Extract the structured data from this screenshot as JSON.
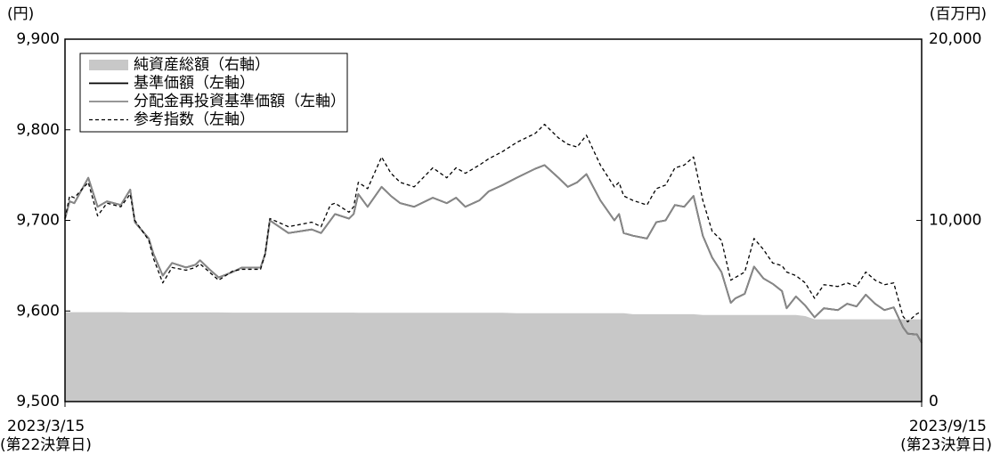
{
  "chart_data": {
    "type": "line",
    "y_unit": "(円)",
    "y2_unit": "(百万円)",
    "xlim": [
      0,
      184
    ],
    "xticks": [
      {
        "value": 0,
        "label": "2023/3/15"
      },
      {
        "value": 184,
        "label": "2023/9/15"
      }
    ],
    "xtick_sublabels": [
      "(第22決算日)",
      "(第23決算日)"
    ],
    "ylim": [
      9500,
      9900
    ],
    "yticks": [
      {
        "value": 9500,
        "label": "9,500"
      },
      {
        "value": 9600,
        "label": "9,600"
      },
      {
        "value": 9700,
        "label": "9,700"
      },
      {
        "value": 9800,
        "label": "9,800"
      },
      {
        "value": 9900,
        "label": "9,900"
      }
    ],
    "y2lim": [
      0,
      20000
    ],
    "y2ticks": [
      0,
      {
        "value": 10000,
        "label": "10,000"
      },
      {
        "value": 20000,
        "label": "20,000"
      }
    ],
    "grid": false,
    "legend": "upper left",
    "x": [
      0,
      1,
      2,
      5,
      7,
      9,
      12,
      14,
      15,
      18,
      19,
      21,
      23,
      26,
      28,
      29,
      31,
      33,
      36,
      38,
      42,
      43,
      44,
      48,
      53,
      55,
      57,
      58,
      61,
      62,
      63,
      65,
      68,
      70,
      72,
      75,
      79,
      82,
      84,
      86,
      89,
      91,
      94,
      97,
      101,
      103,
      106,
      108,
      110,
      112,
      115,
      118,
      119,
      120,
      122,
      125,
      127,
      129,
      131,
      133,
      135,
      137,
      139,
      141,
      143,
      144,
      146,
      148,
      150,
      152,
      154,
      155,
      157,
      159,
      161,
      163,
      166,
      168,
      170,
      172,
      174,
      176,
      178,
      180,
      181,
      183,
      184
    ],
    "series": [
      {
        "name": "純資産総額（右軸）",
        "color": "#c8c8c8",
        "axis": "y2",
        "style": "area",
        "values": [
          4930,
          4930,
          4930,
          4930,
          4930,
          4930,
          4930,
          4920,
          4920,
          4920,
          4920,
          4920,
          4920,
          4920,
          4920,
          4920,
          4920,
          4920,
          4910,
          4910,
          4910,
          4910,
          4910,
          4910,
          4910,
          4910,
          4910,
          4910,
          4910,
          4910,
          4900,
          4900,
          4900,
          4900,
          4900,
          4900,
          4900,
          4900,
          4900,
          4900,
          4900,
          4900,
          4900,
          4880,
          4880,
          4880,
          4880,
          4880,
          4880,
          4880,
          4880,
          4880,
          4880,
          4880,
          4820,
          4820,
          4820,
          4820,
          4820,
          4820,
          4820,
          4780,
          4780,
          4780,
          4780,
          4780,
          4780,
          4780,
          4780,
          4780,
          4780,
          4780,
          4780,
          4720,
          4540,
          4540,
          4540,
          4540,
          4540,
          4540,
          4540,
          4540,
          4540,
          4540,
          4540,
          4540,
          4540
        ]
      },
      {
        "name": "基準価額（左軸）",
        "color": "#000000",
        "style": "solid",
        "values": [
          9702,
          9721,
          9719,
          9747,
          9715,
          9721,
          9717,
          9734,
          9698,
          9680,
          9663,
          9639,
          9653,
          9648,
          9651,
          9656,
          9646,
          9637,
          9643,
          9648,
          9648,
          9663,
          9700,
          9686,
          9690,
          9686,
          9700,
          9707,
          9702,
          9707,
          9729,
          9715,
          9737,
          9727,
          9719,
          9715,
          9725,
          9719,
          9725,
          9715,
          9722,
          9732,
          9739,
          9747,
          9757,
          9761,
          9747,
          9737,
          9742,
          9751,
          9722,
          9700,
          9707,
          9686,
          9683,
          9680,
          9698,
          9700,
          9717,
          9715,
          9727,
          9683,
          9659,
          9643,
          9609,
          9614,
          9619,
          9649,
          9636,
          9630,
          9622,
          9603,
          9616,
          9606,
          9593,
          9603,
          9601,
          9608,
          9605,
          9618,
          9608,
          9601,
          9604,
          9582,
          9575,
          9574,
          9565
        ]
      },
      {
        "name": "分配金再投資基準価額（左軸）",
        "color": "#888888",
        "style": "solid",
        "values": [
          9702,
          9721,
          9719,
          9747,
          9715,
          9721,
          9717,
          9734,
          9698,
          9680,
          9663,
          9639,
          9653,
          9648,
          9651,
          9656,
          9646,
          9637,
          9643,
          9648,
          9648,
          9663,
          9700,
          9686,
          9690,
          9686,
          9700,
          9707,
          9702,
          9707,
          9729,
          9715,
          9737,
          9727,
          9719,
          9715,
          9725,
          9719,
          9725,
          9715,
          9722,
          9732,
          9739,
          9747,
          9757,
          9761,
          9747,
          9737,
          9742,
          9751,
          9722,
          9700,
          9707,
          9686,
          9683,
          9680,
          9698,
          9700,
          9717,
          9715,
          9727,
          9683,
          9659,
          9643,
          9609,
          9614,
          9619,
          9649,
          9636,
          9630,
          9622,
          9603,
          9616,
          9606,
          9593,
          9603,
          9601,
          9608,
          9605,
          9618,
          9608,
          9601,
          9604,
          9582,
          9575,
          9574,
          9565
        ]
      },
      {
        "name": "参考指数（左軸）",
        "color": "#000000",
        "style": "dashed",
        "values": [
          9702,
          9727,
          9725,
          9742,
          9705,
          9719,
          9715,
          9729,
          9700,
          9678,
          9658,
          9631,
          9648,
          9645,
          9648,
          9652,
          9643,
          9634,
          9644,
          9646,
          9646,
          9663,
          9702,
          9693,
          9698,
          9693,
          9717,
          9719,
          9709,
          9715,
          9742,
          9735,
          9770,
          9752,
          9742,
          9737,
          9758,
          9747,
          9758,
          9752,
          9761,
          9768,
          9776,
          9786,
          9796,
          9806,
          9791,
          9784,
          9781,
          9794,
          9761,
          9737,
          9742,
          9727,
          9722,
          9717,
          9735,
          9739,
          9758,
          9761,
          9770,
          9722,
          9688,
          9678,
          9634,
          9637,
          9643,
          9680,
          9668,
          9653,
          9650,
          9643,
          9639,
          9631,
          9614,
          9629,
          9627,
          9631,
          9627,
          9643,
          9634,
          9629,
          9631,
          9594,
          9588,
          9597,
          9599
        ]
      }
    ]
  }
}
